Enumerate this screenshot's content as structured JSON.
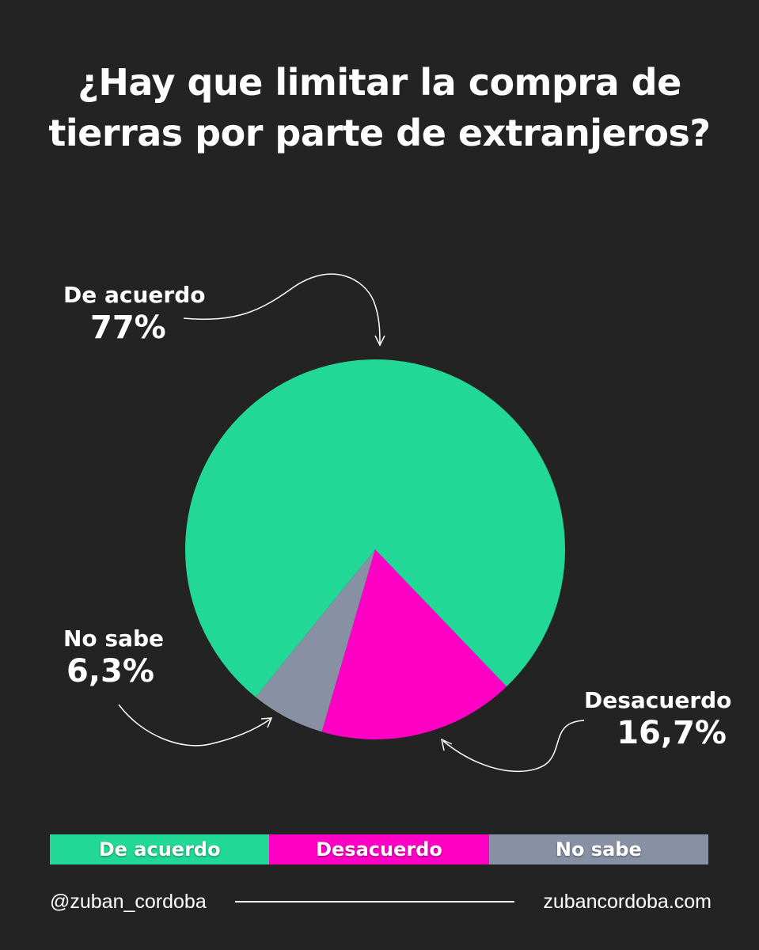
{
  "chart_data": {
    "type": "pie",
    "title_lines": [
      "¿Hay que limitar la compra de",
      "tierras por parte de extranjeros?"
    ],
    "slices": [
      {
        "name": "De acuerdo",
        "value": 77,
        "label": "77%",
        "color": "#22d896"
      },
      {
        "name": "Desacuerdo",
        "value": 16.7,
        "label": "16,7%",
        "color": "#ff00c4"
      },
      {
        "name": "No sabe",
        "value": 6.3,
        "label": "6,3%",
        "color": "#8891a4"
      }
    ],
    "legend_placement": "bottom"
  },
  "footer": {
    "handle": "@zuban_cordoba",
    "website": "zubancordoba.com"
  }
}
